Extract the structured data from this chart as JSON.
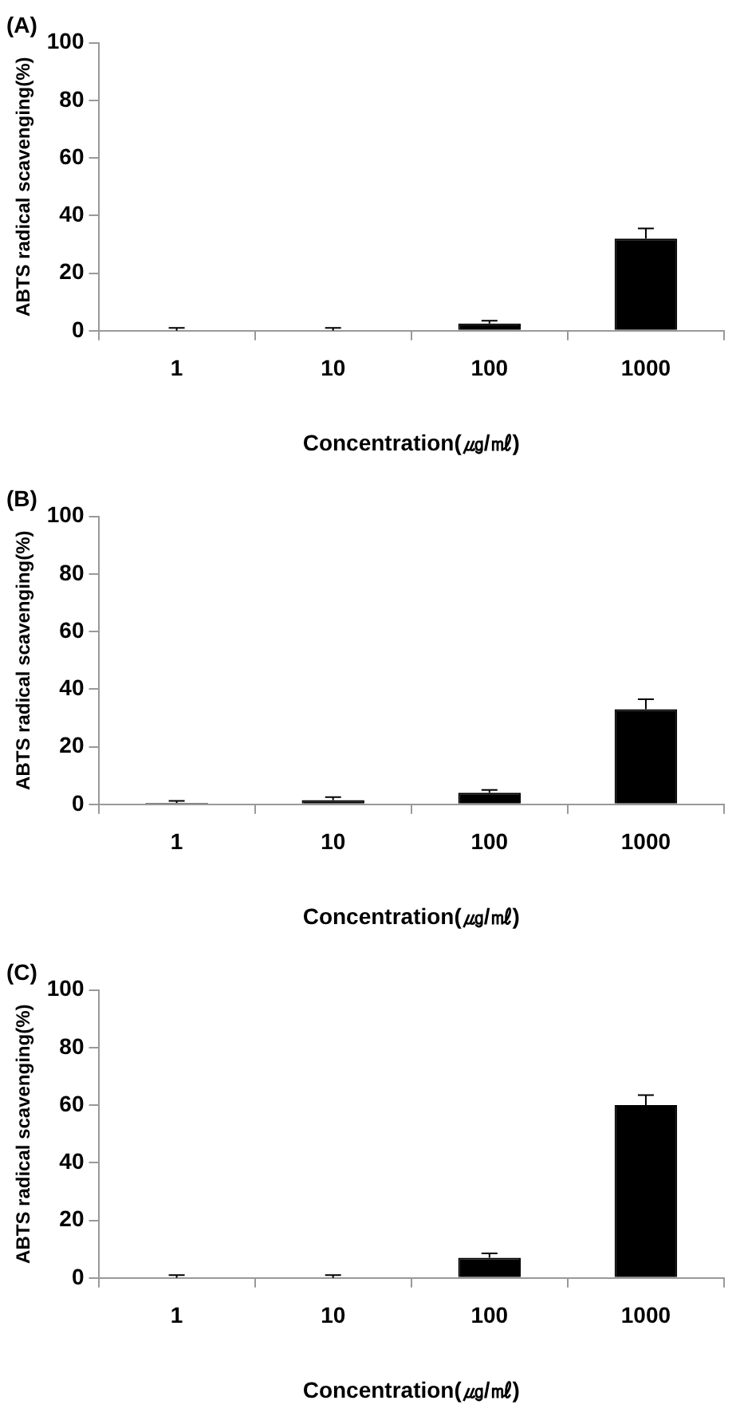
{
  "chart_data": [
    {
      "type": "bar",
      "title": "(A)",
      "xlabel": "Concentration(㎍/㎖)",
      "ylabel": "ABTS radical scavenging(%)",
      "categories": [
        "1",
        "10",
        "100",
        "1000"
      ],
      "values": [
        0,
        0,
        2.5,
        32
      ],
      "color": "#000000",
      "errors": [
        [
          0,
          1
        ],
        [
          0,
          1
        ],
        [
          2.5,
          3.5
        ],
        [
          32,
          35.5
        ]
      ],
      "ylim": [
        0,
        100
      ],
      "yticks": [
        0,
        20,
        40,
        60,
        80,
        100
      ],
      "grid": false,
      "legend": false
    },
    {
      "type": "bar",
      "title": "(B)",
      "xlabel": "Concentration(㎍/㎖)",
      "ylabel": "ABTS radical scavenging(%)",
      "categories": [
        "1",
        "10",
        "100",
        "1000"
      ],
      "values": [
        0.5,
        1.5,
        4,
        33
      ],
      "color": "#000000",
      "errors": [
        [
          0.5,
          1.2
        ],
        [
          1.5,
          2.5
        ],
        [
          4,
          5
        ],
        [
          33,
          36.5
        ]
      ],
      "ylim": [
        0,
        100
      ],
      "yticks": [
        0,
        20,
        40,
        60,
        80,
        100
      ],
      "grid": false,
      "legend": false
    },
    {
      "type": "bar",
      "title": "(C)",
      "xlabel": "Concentration(㎍/㎖)",
      "ylabel": "ABTS radical scavenging(%)",
      "categories": [
        "1",
        "10",
        "100",
        "1000"
      ],
      "values": [
        0,
        0,
        7,
        60
      ],
      "color": "#000000",
      "errors": [
        [
          0,
          1
        ],
        [
          0,
          1
        ],
        [
          7,
          8.5
        ],
        [
          60,
          63.5
        ]
      ],
      "ylim": [
        0,
        100
      ],
      "yticks": [
        0,
        20,
        40,
        60,
        80,
        100
      ],
      "grid": false,
      "legend": false
    }
  ]
}
